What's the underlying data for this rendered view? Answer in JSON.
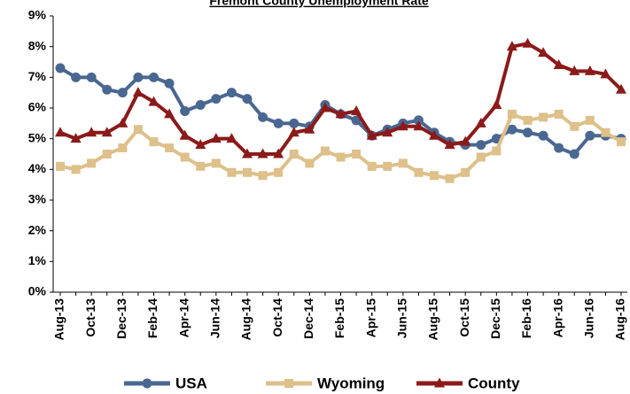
{
  "chart_data": {
    "type": "line",
    "title": "Fremont County Unemployment Rate",
    "categories": [
      "Aug-13",
      null,
      "Oct-13",
      null,
      "Dec-13",
      null,
      "Feb-14",
      null,
      "Apr-14",
      null,
      "Jun-14",
      null,
      "Aug-14",
      null,
      "Oct-14",
      null,
      "Dec-14",
      null,
      "Feb-15",
      null,
      "Apr-15",
      null,
      "Jun-15",
      null,
      "Aug-15",
      null,
      "Oct-15",
      null,
      "Dec-15",
      null,
      "Feb-16",
      null,
      "Apr-16",
      null,
      "Jun-16",
      null,
      "Aug-16"
    ],
    "series": [
      {
        "name": "USA",
        "color": "#4a6791",
        "marker": "circle",
        "values": [
          7.3,
          7.0,
          7.0,
          6.6,
          6.5,
          7.0,
          7.0,
          6.8,
          5.9,
          6.1,
          6.3,
          6.5,
          6.3,
          5.7,
          5.5,
          5.5,
          5.4,
          6.1,
          5.8,
          5.6,
          5.1,
          5.3,
          5.5,
          5.6,
          5.2,
          4.9,
          4.8,
          4.8,
          5.0,
          5.3,
          5.2,
          5.1,
          4.7,
          4.5,
          5.1,
          5.1,
          5.0
        ]
      },
      {
        "name": "Wyoming",
        "color": "#ddc08a",
        "marker": "square",
        "values": [
          4.1,
          4.0,
          4.2,
          4.5,
          4.7,
          5.3,
          4.9,
          4.7,
          4.4,
          4.1,
          4.2,
          3.9,
          3.9,
          3.8,
          3.9,
          4.5,
          4.2,
          4.6,
          4.4,
          4.5,
          4.1,
          4.1,
          4.2,
          3.9,
          3.8,
          3.7,
          3.9,
          4.4,
          4.6,
          5.8,
          5.6,
          5.7,
          5.8,
          5.4,
          5.6,
          5.2,
          4.9
        ]
      },
      {
        "name": "County",
        "color": "#8b1a1a",
        "marker": "triangle",
        "values": [
          5.2,
          5.0,
          5.2,
          5.2,
          5.5,
          6.5,
          6.2,
          5.8,
          5.1,
          4.8,
          5.0,
          5.0,
          4.5,
          4.5,
          4.5,
          5.2,
          5.3,
          6.0,
          5.8,
          5.9,
          5.1,
          5.2,
          5.4,
          5.4,
          5.1,
          4.8,
          4.9,
          5.5,
          6.1,
          8.0,
          8.1,
          7.8,
          7.4,
          7.2,
          7.2,
          7.1,
          6.6
        ]
      }
    ],
    "ylim": [
      0,
      9
    ],
    "yticks": [
      {
        "value": 0,
        "label": "0%"
      },
      {
        "value": 1,
        "label": "1%"
      },
      {
        "value": 2,
        "label": "2%"
      },
      {
        "value": 3,
        "label": "3%"
      },
      {
        "value": 4,
        "label": "4%"
      },
      {
        "value": 5,
        "label": "5%"
      },
      {
        "value": 6,
        "label": "6%"
      },
      {
        "value": 7,
        "label": "7%"
      },
      {
        "value": 8,
        "label": "8%"
      },
      {
        "value": 9,
        "label": "9%"
      }
    ],
    "grid": false,
    "legend": "bottom"
  }
}
